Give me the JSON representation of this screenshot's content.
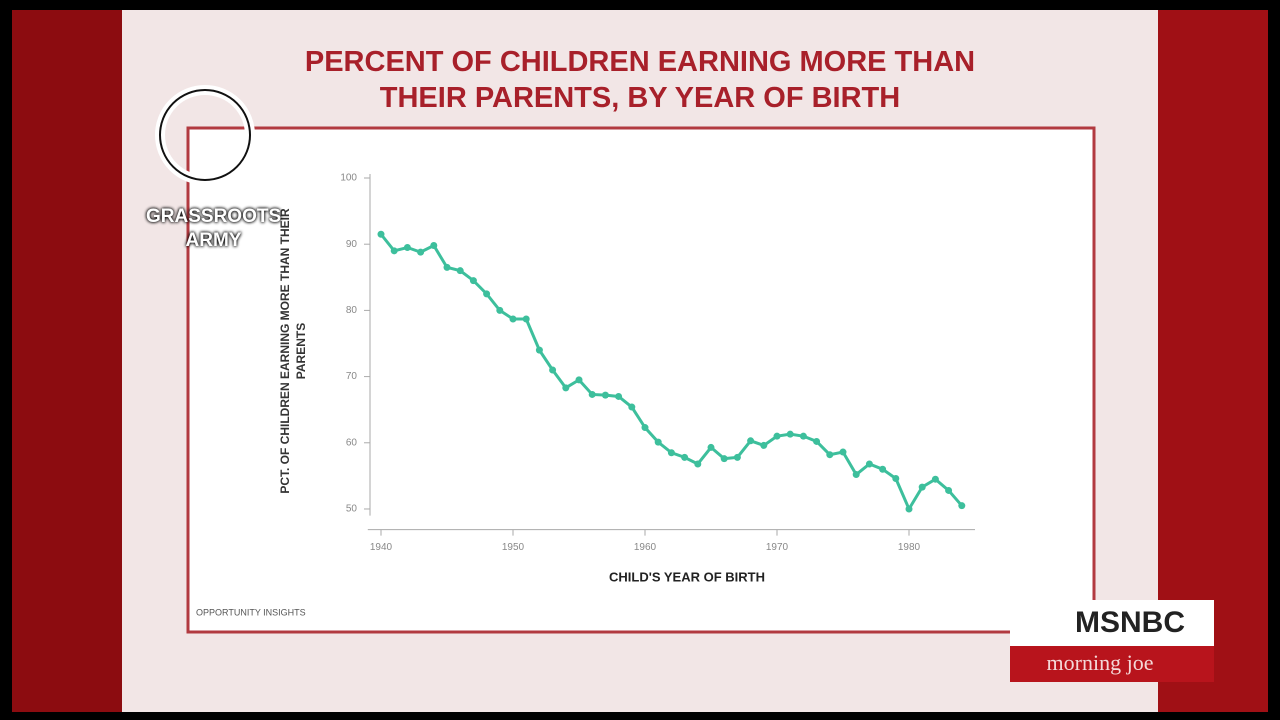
{
  "chart_data": {
    "type": "line",
    "title": "PERCENT OF CHILDREN EARNING MORE THAN THEIR PARENTS, BY YEAR OF BIRTH",
    "x_label": "CHILD'S YEAR OF BIRTH",
    "y_label": "PCT. OF CHILDREN EARNING MORE THAN THEIR PARENTS",
    "source": "OPPORTUNITY INSIGHTS",
    "x": [
      1940,
      1941,
      1942,
      1943,
      1944,
      1945,
      1946,
      1947,
      1948,
      1949,
      1950,
      1951,
      1952,
      1953,
      1954,
      1955,
      1956,
      1957,
      1958,
      1959,
      1960,
      1961,
      1962,
      1963,
      1964,
      1965,
      1966,
      1967,
      1968,
      1969,
      1970,
      1971,
      1972,
      1973,
      1974,
      1975,
      1976,
      1977,
      1978,
      1979,
      1980,
      1981,
      1982,
      1983,
      1984
    ],
    "series": [
      {
        "color": "#3dbf9c",
        "values": [
          91.5,
          89,
          89.5,
          88.8,
          89.8,
          86.5,
          86,
          84.5,
          82.5,
          80,
          78.7,
          78.7,
          74,
          71,
          68.3,
          69.5,
          67.3,
          67.2,
          67,
          65.4,
          62.3,
          60.1,
          58.5,
          57.8,
          56.8,
          59.3,
          57.6,
          57.8,
          60.3,
          59.6,
          61,
          61.3,
          61,
          60.2,
          58.2,
          58.6,
          55.2,
          56.8,
          56,
          54.6,
          50,
          53.3,
          54.5,
          52.8,
          50.5
        ]
      }
    ],
    "xlim": [
      1939,
      1985
    ],
    "xticks": [
      1940,
      1950,
      1960,
      1970,
      1980
    ],
    "ylim": [
      49,
      100
    ],
    "yticks": [
      50,
      60,
      70,
      80,
      90,
      100
    ]
  },
  "broadcast": {
    "watermark": "GRASSROOTS ARMY",
    "network": "MSNBC",
    "show": "morning joe"
  }
}
